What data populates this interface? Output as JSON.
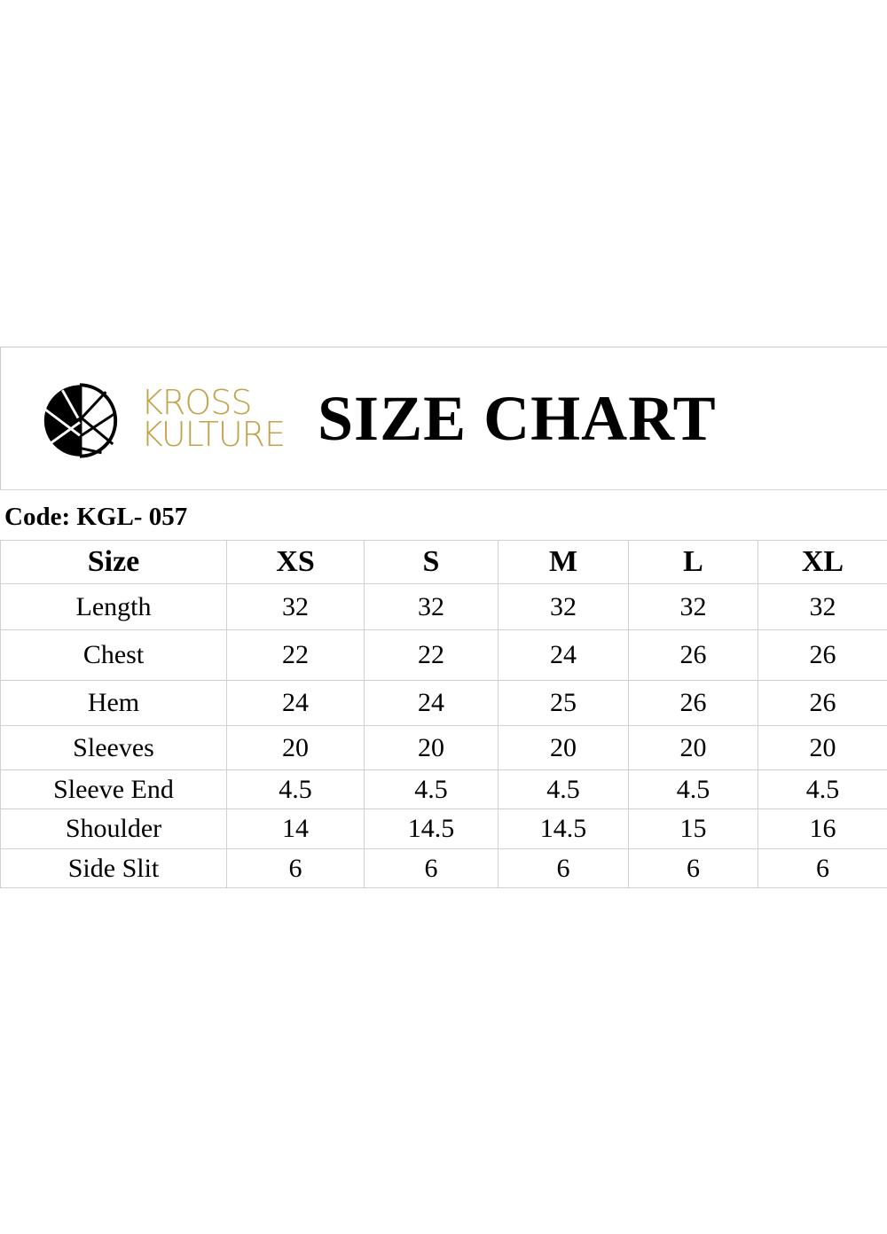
{
  "brand": {
    "line1": "KROSS",
    "line2": "KULTURE",
    "color": "#c4a24a"
  },
  "title": "SIZE CHART",
  "code": "Code: KGL- 057",
  "table": {
    "headers": [
      "Size",
      "XS",
      "S",
      "M",
      "L",
      "XL"
    ],
    "rows": [
      [
        "Length",
        "32",
        "32",
        "32",
        "32",
        "32"
      ],
      [
        "Chest",
        "22",
        "22",
        "24",
        "26",
        "26"
      ],
      [
        "Hem",
        "24",
        "24",
        "25",
        "26",
        "26"
      ],
      [
        "Sleeves",
        "20",
        "20",
        "20",
        "20",
        "20"
      ],
      [
        "Sleeve End",
        "4.5",
        "4.5",
        "4.5",
        "4.5",
        "4.5"
      ],
      [
        "Shoulder",
        "14",
        "14.5",
        "14.5",
        "15",
        "16"
      ],
      [
        "Side Slit",
        "6",
        "6",
        "6",
        "6",
        "6"
      ]
    ]
  }
}
